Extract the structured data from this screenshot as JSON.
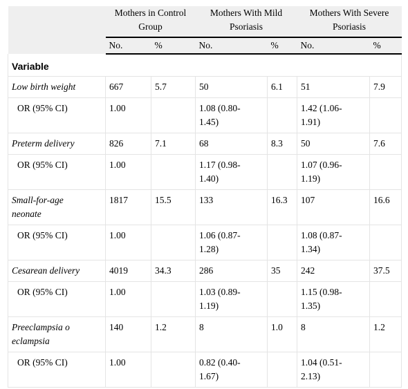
{
  "header": {
    "groups": [
      {
        "line1": "Mothers in Control",
        "line2": "Group"
      },
      {
        "line1": "Mothers With Mild",
        "line2": "Psoriasis"
      },
      {
        "line1": "Mothers With Severe",
        "line2": "Psoriasis"
      }
    ],
    "sub": [
      "No.",
      "%",
      "No.",
      "%",
      "No.",
      "%"
    ]
  },
  "variable_label": "Variable",
  "rows": [
    {
      "label": [
        "Low birth weight"
      ],
      "type": "var",
      "cells": [
        [
          "667"
        ],
        [
          "5.7"
        ],
        [
          "50"
        ],
        [
          "6.1"
        ],
        [
          "51"
        ],
        [
          "7.9"
        ]
      ]
    },
    {
      "label": [
        "OR (95% CI)"
      ],
      "type": "or",
      "cells": [
        [
          "1.00"
        ],
        [
          ""
        ],
        [
          "1.08 (0.80-",
          "1.45)"
        ],
        [
          ""
        ],
        [
          "1.42 (1.06-",
          "1.91)"
        ],
        [
          ""
        ]
      ]
    },
    {
      "label": [
        "Preterm delivery"
      ],
      "type": "var",
      "cells": [
        [
          "826"
        ],
        [
          "7.1"
        ],
        [
          "68"
        ],
        [
          "8.3"
        ],
        [
          "50"
        ],
        [
          "7.6"
        ]
      ]
    },
    {
      "label": [
        "OR (95% CI)"
      ],
      "type": "or",
      "cells": [
        [
          "1.00"
        ],
        [
          ""
        ],
        [
          "1.17 (0.98-",
          "1.40)"
        ],
        [
          ""
        ],
        [
          "1.07 (0.96-",
          "1.19)"
        ],
        [
          ""
        ]
      ]
    },
    {
      "label": [
        "Small-for-age",
        "neonate"
      ],
      "type": "var",
      "cells": [
        [
          "1817"
        ],
        [
          "15.5"
        ],
        [
          "133"
        ],
        [
          "16.3"
        ],
        [
          "107"
        ],
        [
          "16.6"
        ]
      ]
    },
    {
      "label": [
        "OR (95% CI)"
      ],
      "type": "or",
      "cells": [
        [
          "1.00"
        ],
        [
          ""
        ],
        [
          "1.06 (0.87-",
          "1.28)"
        ],
        [
          ""
        ],
        [
          "1.08 (0.87-",
          "1.34)"
        ],
        [
          ""
        ]
      ]
    },
    {
      "label": [
        "Cesarean delivery"
      ],
      "type": "var",
      "cells": [
        [
          "4019"
        ],
        [
          "34.3"
        ],
        [
          "286"
        ],
        [
          "35"
        ],
        [
          "242"
        ],
        [
          "37.5"
        ]
      ]
    },
    {
      "label": [
        "OR (95% CI)"
      ],
      "type": "or",
      "cells": [
        [
          "1.00"
        ],
        [
          ""
        ],
        [
          "1.03 (0.89-",
          "1.19)"
        ],
        [
          ""
        ],
        [
          "1.15 (0.98-",
          "1.35)"
        ],
        [
          ""
        ]
      ]
    },
    {
      "label": [
        "Preeclampsia o",
        "eclampsia"
      ],
      "type": "var",
      "cells": [
        [
          "140"
        ],
        [
          "1.2"
        ],
        [
          "8"
        ],
        [
          "1.0"
        ],
        [
          "8"
        ],
        [
          "1.2"
        ]
      ]
    },
    {
      "label": [
        "OR (95% CI)"
      ],
      "type": "or",
      "cells": [
        [
          "1.00"
        ],
        [
          ""
        ],
        [
          "0.82 (0.40-",
          "1.67)"
        ],
        [
          ""
        ],
        [
          "1.04 (0.51-",
          "2.13)"
        ],
        [
          ""
        ]
      ]
    }
  ]
}
